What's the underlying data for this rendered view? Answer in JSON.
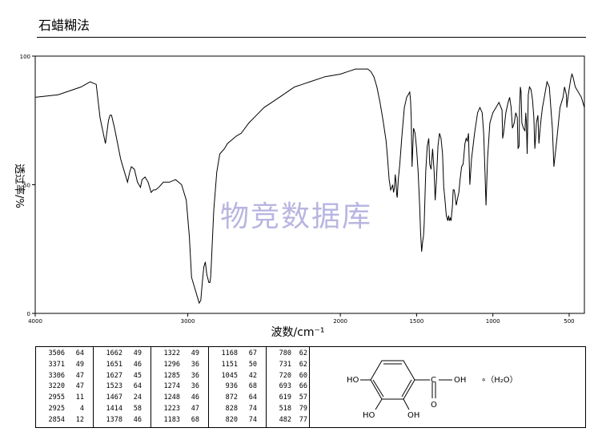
{
  "page_title": "石蜡糊法",
  "watermark": "物竞数据库",
  "chart_data": {
    "type": "line",
    "title": "",
    "xlabel": "波数/cm⁻¹",
    "ylabel": "透过率/%",
    "xlim": [
      4000,
      400
    ],
    "ylim": [
      0,
      100
    ],
    "x_ticks": [
      "4000",
      "3000",
      "2000",
      "1500",
      "1000",
      "500"
    ],
    "y_ticks": [
      "0",
      "50",
      "100"
    ],
    "grid": false,
    "series": [
      {
        "x": [
          4000,
          3850,
          3700,
          3640,
          3600,
          3575,
          3540,
          3520,
          3510,
          3500,
          3480,
          3440,
          3410,
          3395,
          3380,
          3370,
          3350,
          3330,
          3320,
          3310,
          3300,
          3280,
          3260,
          3240,
          3225,
          3210,
          3190,
          3160,
          3120,
          3080,
          3040,
          3010,
          2990,
          2975,
          2965,
          2955,
          2945,
          2935,
          2925,
          2915,
          2905,
          2895,
          2885,
          2875,
          2870,
          2862,
          2855,
          2850,
          2845,
          2830,
          2810,
          2790,
          2760,
          2740,
          2700,
          2680,
          2650,
          2600,
          2550,
          2500,
          2450,
          2400,
          2350,
          2300,
          2250,
          2200,
          2100,
          2000,
          1950,
          1900,
          1850,
          1820,
          1800,
          1780,
          1760,
          1740,
          1720,
          1700,
          1690,
          1680,
          1670,
          1662,
          1657,
          1651,
          1645,
          1640,
          1635,
          1630,
          1627,
          1620,
          1610,
          1595,
          1580,
          1565,
          1555,
          1545,
          1540,
          1535,
          1530,
          1525,
          1520,
          1510,
          1500,
          1490,
          1480,
          1474,
          1467,
          1460,
          1455,
          1450,
          1440,
          1430,
          1420,
          1414,
          1405,
          1395,
          1385,
          1378,
          1370,
          1360,
          1350,
          1340,
          1330,
          1322,
          1315,
          1305,
          1296,
          1290,
          1285,
          1279,
          1274,
          1265,
          1260,
          1254,
          1248,
          1240,
          1230,
          1223,
          1215,
          1205,
          1195,
          1183,
          1175,
          1168,
          1160,
          1151,
          1140,
          1120,
          1100,
          1085,
          1070,
          1060,
          1052,
          1045,
          1035,
          1020,
          1000,
          980,
          960,
          940,
          936,
          930,
          915,
          900,
          890,
          880,
          872,
          860,
          850,
          840,
          835,
          828,
          825,
          820,
          815,
          810,
          800,
          790,
          784,
          780,
          775,
          768,
          760,
          750,
          740,
          731,
          725,
          720,
          715,
          705,
          698,
          693,
          685,
          675,
          660,
          645,
          630,
          619,
          610,
          600,
          580,
          560,
          540,
          530,
          518,
          515,
          512,
          500,
          490,
          482,
          475,
          460,
          440,
          420,
          400
        ],
        "values": [
          84,
          85,
          88,
          90,
          89,
          76,
          66,
          75,
          77,
          77,
          72,
          60,
          54,
          51,
          55,
          57,
          56,
          51,
          50,
          49,
          52,
          53,
          51,
          47,
          48,
          48,
          49,
          51,
          51,
          52,
          50,
          44,
          30,
          14,
          12,
          10,
          8,
          6,
          4,
          5,
          12,
          18,
          20,
          15,
          14,
          12,
          12,
          14,
          20,
          40,
          55,
          62,
          64,
          66,
          68,
          69,
          70,
          74,
          77,
          80,
          82,
          84,
          86,
          88,
          89,
          90,
          92,
          93,
          94,
          95,
          95,
          95,
          94,
          92,
          88,
          82,
          75,
          67,
          60,
          52,
          48,
          49,
          50,
          47,
          49,
          54,
          51,
          46,
          45,
          52,
          58,
          70,
          80,
          84,
          85,
          86,
          83,
          76,
          57,
          64,
          72,
          70,
          64,
          55,
          42,
          32,
          24,
          28,
          30,
          35,
          55,
          65,
          68,
          58,
          56,
          64,
          55,
          44,
          52,
          65,
          70,
          68,
          62,
          49,
          45,
          38,
          36,
          38,
          36,
          37,
          36,
          42,
          48,
          48,
          46,
          42,
          45,
          47,
          52,
          57,
          58,
          66,
          68,
          67,
          70,
          50,
          60,
          70,
          78,
          80,
          78,
          70,
          55,
          42,
          60,
          74,
          78,
          80,
          82,
          79,
          68,
          70,
          78,
          82,
          84,
          80,
          72,
          74,
          78,
          76,
          64,
          65,
          80,
          88,
          86,
          74,
          72,
          71,
          78,
          74,
          62,
          85,
          88,
          87,
          83,
          76,
          64,
          68,
          74,
          77,
          66,
          70,
          75,
          80,
          85,
          90,
          88,
          79,
          72,
          57,
          68,
          80,
          84,
          88,
          85,
          80,
          82,
          87,
          91,
          93,
          92,
          88,
          86,
          84,
          80
        ]
      }
    ],
    "peaks": [
      [
        "3506",
        "64"
      ],
      [
        "3371",
        "49"
      ],
      [
        "3306",
        "47"
      ],
      [
        "3220",
        "47"
      ],
      [
        "2955",
        "11"
      ],
      [
        "2925",
        "4"
      ],
      [
        "2854",
        "12"
      ],
      [
        "1662",
        "49"
      ],
      [
        "1651",
        "46"
      ],
      [
        "1627",
        "45"
      ],
      [
        "1523",
        "64"
      ],
      [
        "1467",
        "24"
      ],
      [
        "1414",
        "58"
      ],
      [
        "1378",
        "46"
      ],
      [
        "1322",
        "49"
      ],
      [
        "1296",
        "36"
      ],
      [
        "1285",
        "36"
      ],
      [
        "1274",
        "36"
      ],
      [
        "1248",
        "46"
      ],
      [
        "1223",
        "47"
      ],
      [
        "1183",
        "68"
      ],
      [
        "1168",
        "67"
      ],
      [
        "1151",
        "50"
      ],
      [
        "1045",
        "42"
      ],
      [
        "936",
        "68"
      ],
      [
        "872",
        "64"
      ],
      [
        "828",
        "74"
      ],
      [
        "820",
        "74"
      ],
      [
        "780",
        "62"
      ],
      [
        "731",
        "62"
      ],
      [
        "720",
        "60"
      ],
      [
        "693",
        "66"
      ],
      [
        "619",
        "57"
      ],
      [
        "518",
        "79"
      ],
      [
        "482",
        "77"
      ]
    ]
  },
  "structure": {
    "ho_top": "HO",
    "ho_bottom": "HO",
    "oh_bottom": "OH",
    "oh_acid": "OH",
    "carbon": "C",
    "oxygen": "O",
    "hydrate": "∘（H₂O）"
  }
}
